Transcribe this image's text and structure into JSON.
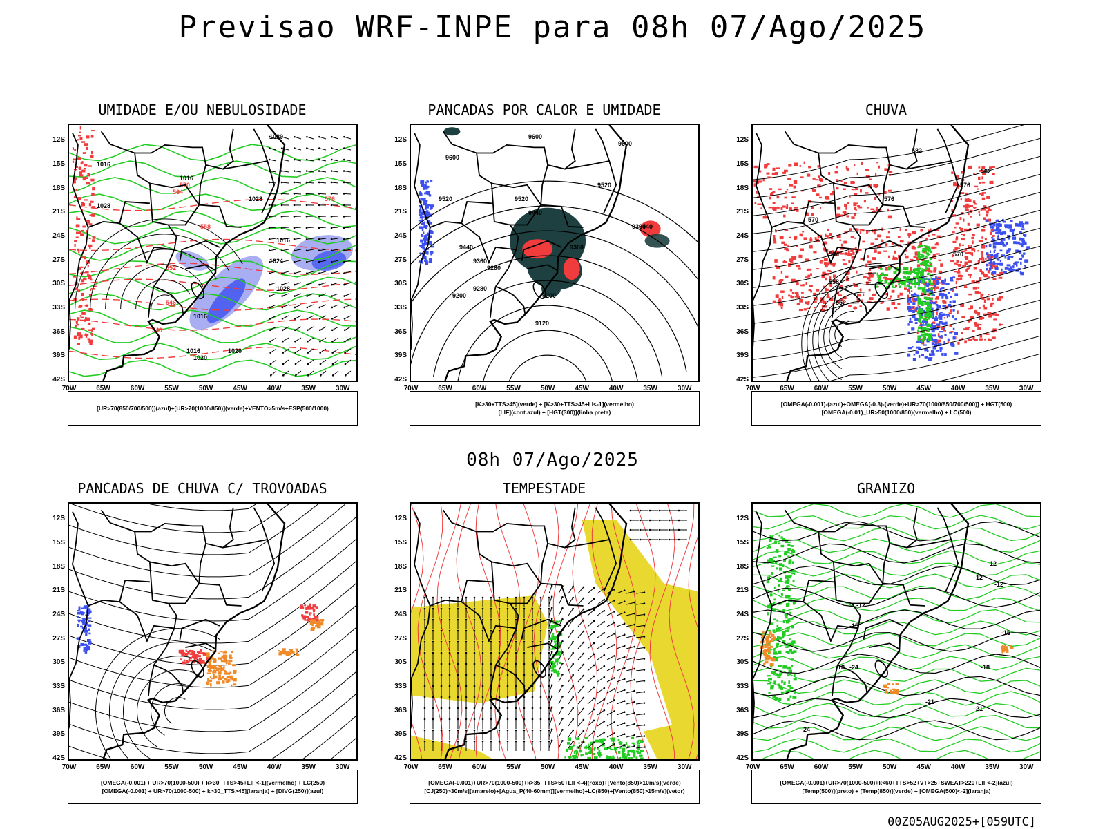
{
  "title": "Previsao WRF-INPE  para 08h 07/Ago/2025",
  "subtitle": "08h 07/Ago/2025",
  "footer": "00Z05AUG2025+[059UTC]",
  "lat_labels": [
    "12S",
    "15S",
    "18S",
    "21S",
    "24S",
    "27S",
    "30S",
    "33S",
    "36S",
    "39S",
    "42S"
  ],
  "lon_labels": [
    "70W",
    "65W",
    "60W",
    "55W",
    "50W",
    "45W",
    "40W",
    "35W",
    "30W"
  ],
  "colors": {
    "blue": "#3c50f0",
    "lightblue": "#9aa0f0",
    "green": "#22cc22",
    "red": "#f03c3c",
    "darkgreen": "#1f4040",
    "orange": "#f08a28",
    "yellow": "#e8d830",
    "black": "#000000"
  },
  "panels": [
    {
      "title": "UMIDADE E/OU NEBULOSIDADE",
      "legend": [
        "[UR>70(850/700/500)](azul)+[UR>70(1000/850)](verde)+VENTO>5m/s+ESP(500/1000)"
      ],
      "contour_labels": [
        "1020",
        "1016",
        "1016",
        "1028",
        "1028",
        "1016",
        "1024",
        "1028",
        "1016",
        "1020",
        "576",
        "570",
        "564",
        "558",
        "552",
        "546",
        "540",
        "1016",
        "1020"
      ]
    },
    {
      "title": "PANCADAS POR CALOR E UMIDADE",
      "legend": [
        "[K>30+TTS>45](verde) + [K>30+TTS>45+LI<-1](vermelho)",
        "[LIF](cont.azul) + [HGT(300)](linha preta)"
      ],
      "contour_labels": [
        "9600",
        "9600",
        "9600",
        "9520",
        "9520",
        "9520",
        "9440",
        "9440",
        "9440",
        "9360",
        "9360",
        "9280",
        "9280",
        "9200",
        "9200",
        "9120",
        "9360"
      ]
    },
    {
      "title": "CHUVA",
      "legend": [
        "[OMEGA(-0.001)-(azul)+OMEGA(-0.3)-(verde)+UR>70(1000/850/700/500)] + HGT(500)",
        "[OMEGA(-0.01)_UR>50(1000/850)(vermelho) + LC(500)"
      ],
      "contour_labels": [
        "582",
        "576",
        "576",
        "570",
        "570",
        "582",
        "564",
        "558",
        "552"
      ]
    },
    {
      "title": "PANCADAS DE CHUVA C/ TROVOADAS",
      "legend": [
        "[OMEGA(-0.001) + UR>70(1000-500) + k>30_TTS>45+LIF<-1](vermelho) + LC(250)",
        "[OMEGA(-0.001) + UR>70(1000-500) + k>30_TTS>45](laranja) + [DIVG(250)](azul)"
      ],
      "contour_labels": []
    },
    {
      "title": "TEMPESTADE",
      "legend": [
        "[OMEGA(-0.001)+UR>70(1000-500)+k>35_TTS>50+LIF<-4](roxo)+[Vento(850)>10m/s](verde)",
        "[CJ(250)>30m/s](amarelo)+[Agua_P(40-60mm)](vermelho)+LC(850)+[Vento(850)>15m/s](vetor)"
      ],
      "contour_labels": []
    },
    {
      "title": "GRANIZO",
      "legend": [
        "[OMEGA(-0.001)+UR>70(1000-500)+k<60+TTS>52+VT>25+SWEAT>220+LIF<-2](azul)",
        "[Temp(500)](preto) + [Temp(850)](verde) + [OMEGA(500)<-2](laranja)"
      ],
      "contour_labels": [
        "-12",
        "-12",
        "-12",
        "-15",
        "-15",
        "-18",
        "-18",
        "-21",
        "-21",
        "-24",
        "-24",
        "-12",
        "-15"
      ]
    }
  ]
}
